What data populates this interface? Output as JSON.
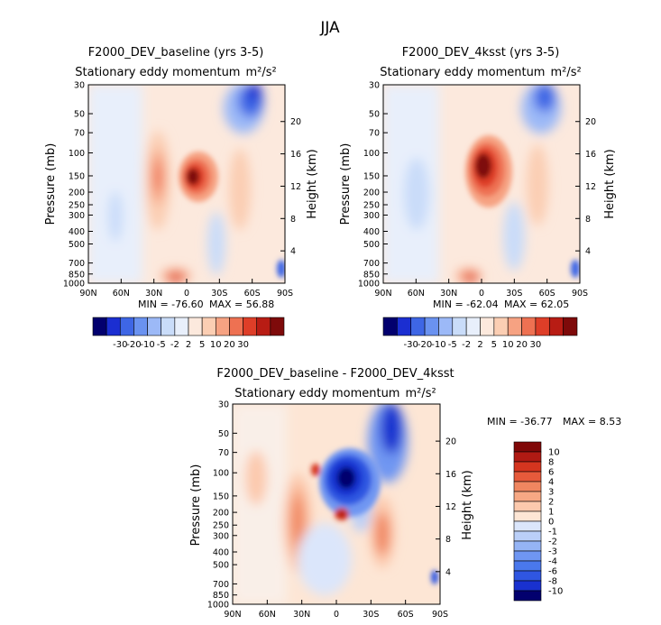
{
  "figure": {
    "title": "JJA",
    "palette_nclr": [
      "#02006e",
      "#1b2ed1",
      "#3e66e5",
      "#6a92f0",
      "#9cb9f7",
      "#c9dcf9",
      "#e8effb",
      "#fce9dd",
      "#fbceb3",
      "#f6a282",
      "#ee7152",
      "#de3e28",
      "#b81c14",
      "#7e0a0a"
    ],
    "diff_palette": [
      "#02006e",
      "#1931cf",
      "#2f56e1",
      "#4a78ec",
      "#6f96f2",
      "#95b4f5",
      "#bacff8",
      "#dbe6fb",
      "#fde6d5",
      "#fcc9ad",
      "#f7a884",
      "#f08660",
      "#e65a3b",
      "#d5351f",
      "#b01a13",
      "#800808"
    ]
  },
  "chart_data": [
    {
      "type": "heatmap",
      "title": "F2000_DEV_baseline (yrs 3-5)",
      "subtitle": "Stationary eddy momentum",
      "units": "m²/s²",
      "ylabel": "Pressure (mb)",
      "ylabel_right": "Height (km)",
      "x_ticks": [
        "90N",
        "60N",
        "30N",
        "0",
        "30S",
        "60S",
        "90S"
      ],
      "y_ticks": [
        "30",
        "50",
        "70",
        "100",
        "150",
        "200",
        "250",
        "300",
        "400",
        "500",
        "700",
        "850",
        "1000"
      ],
      "height_ticks": [
        "20",
        "16",
        "12",
        "8",
        "4"
      ],
      "min_text": "MIN = -76.60",
      "max_text": "MAX =  56.88",
      "colorbar_levels": [
        "-30",
        "-20",
        "-10",
        "-5",
        "-2",
        "2",
        "5",
        "10",
        "20",
        "30"
      ],
      "features": [
        {
          "lat": -3,
          "p": 150,
          "value": 56.88
        },
        {
          "lat": 28,
          "p": 170,
          "value": 12
        },
        {
          "lat": -30,
          "p": 200,
          "value": 8
        },
        {
          "lat": -58,
          "p": 45,
          "value": -76.6
        },
        {
          "lat": 8,
          "p": 1000,
          "value": 20
        }
      ]
    },
    {
      "type": "heatmap",
      "title": "F2000_DEV_4ksst (yrs 3-5)",
      "subtitle": "Stationary eddy momentum",
      "units": "m²/s²",
      "ylabel": "Pressure (mb)",
      "ylabel_right": "Height (km)",
      "x_ticks": [
        "90N",
        "60N",
        "30N",
        "0",
        "30S",
        "60S",
        "90S"
      ],
      "y_ticks": [
        "30",
        "50",
        "70",
        "100",
        "150",
        "200",
        "250",
        "300",
        "400",
        "500",
        "700",
        "850",
        "1000"
      ],
      "height_ticks": [
        "20",
        "16",
        "12",
        "8",
        "4"
      ],
      "min_text": "MIN = -62.04",
      "max_text": "MAX =  62.05",
      "colorbar_levels": [
        "-30",
        "-20",
        "-10",
        "-5",
        "-2",
        "2",
        "5",
        "10",
        "20",
        "30"
      ],
      "features": [
        {
          "lat": 2,
          "p": 140,
          "value": 62.05
        },
        {
          "lat": -30,
          "p": 200,
          "value": 8
        },
        {
          "lat": -60,
          "p": 40,
          "value": -62.04
        },
        {
          "lat": 8,
          "p": 1000,
          "value": 20
        }
      ]
    },
    {
      "type": "heatmap",
      "title": "F2000_DEV_baseline - F2000_DEV_4ksst",
      "subtitle": "Stationary eddy momentum",
      "units": "m²/s²",
      "ylabel": "Pressure (mb)",
      "ylabel_right": "Height (km)",
      "x_ticks": [
        "90N",
        "60N",
        "30N",
        "0",
        "30S",
        "60S",
        "90S"
      ],
      "y_ticks": [
        "30",
        "50",
        "70",
        "100",
        "150",
        "200",
        "250",
        "300",
        "400",
        "500",
        "700",
        "850",
        "1000"
      ],
      "height_ticks": [
        "20",
        "16",
        "12",
        "8",
        "4"
      ],
      "min_text": "MIN = -36.77",
      "max_text": "MAX =   8.53",
      "colorbar_levels": [
        "10",
        "8",
        "6",
        "4",
        "3",
        "2",
        "1",
        "0",
        "-1",
        "-2",
        "-3",
        "-4",
        "-6",
        "-8",
        "-10"
      ],
      "features": [
        {
          "lat": -5,
          "p": 110,
          "value": -36.77
        },
        {
          "lat": -2,
          "p": 200,
          "value": 8.53
        },
        {
          "lat": 10,
          "p": 90,
          "value": 6
        },
        {
          "lat": 27,
          "p": 200,
          "value": 5
        },
        {
          "lat": -40,
          "p": 300,
          "value": 5
        },
        {
          "lat": -50,
          "p": 40,
          "value": -15
        }
      ]
    }
  ]
}
